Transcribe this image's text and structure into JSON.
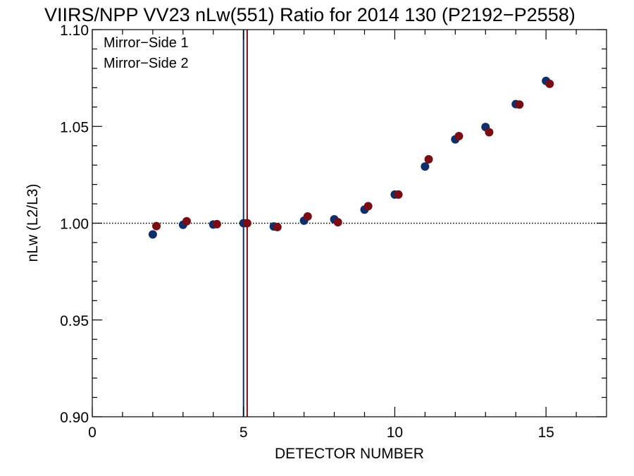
{
  "chart_data": {
    "type": "scatter",
    "title": "VIIRS/NPP VV23 nLw(551) Ratio for 2014 130 (P2192−P2558)",
    "xlabel": "DETECTOR NUMBER",
    "ylabel": "nLw (L2/L3)",
    "xlim": [
      0,
      17
    ],
    "ylim": [
      0.9,
      1.1
    ],
    "x_ticks": [
      0,
      5,
      10,
      15
    ],
    "x_tick_labels": [
      "0",
      "5",
      "10",
      "15"
    ],
    "y_ticks": [
      0.9,
      0.95,
      1.0,
      1.05,
      1.1
    ],
    "y_tick_labels": [
      "0.90",
      "0.95",
      "1.00",
      "1.05",
      "1.10"
    ],
    "reference_line": {
      "y": 1.0,
      "style": "dotted",
      "color": "#000000"
    },
    "vertical_lines": [
      {
        "x": 5.0,
        "color": "#0d2f6b"
      },
      {
        "x": 5.12,
        "color": "#7a0c14"
      }
    ],
    "legend_position": "top-left",
    "grid": false,
    "series": [
      {
        "name": "Mirror−Side 1",
        "color": "#0d2f6b",
        "x": [
          2,
          3,
          4,
          5,
          6,
          7,
          8,
          9,
          10,
          11,
          12,
          13,
          14,
          15
        ],
        "y": [
          0.9942,
          0.9992,
          0.9993,
          1.0,
          0.9983,
          1.0013,
          1.002,
          1.007,
          1.0148,
          1.0293,
          1.0433,
          1.0497,
          1.0615,
          1.0735
        ]
      },
      {
        "name": "Mirror−Side 2",
        "color": "#7a0c14",
        "x": [
          2.12,
          3.12,
          4.12,
          5.12,
          6.12,
          7.12,
          8.12,
          9.12,
          10.12,
          11.12,
          12.12,
          13.12,
          14.12,
          15.12
        ],
        "y": [
          0.9985,
          1.001,
          0.9995,
          1.0,
          0.998,
          1.0035,
          1.0005,
          1.0088,
          1.0148,
          1.033,
          1.045,
          1.047,
          1.0613,
          1.072
        ]
      }
    ]
  }
}
